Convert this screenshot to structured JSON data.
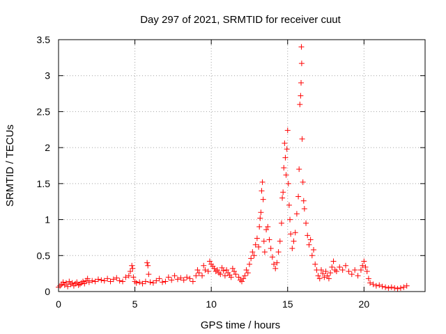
{
  "chart_data": {
    "type": "scatter",
    "title": "Day 297 of 2021, SRMTID for receiver cuut",
    "xlabel": "GPS time / hours",
    "ylabel": "SRMTID / TECUs",
    "xlim": [
      0,
      24
    ],
    "ylim": [
      0,
      3.5
    ],
    "xticks": [
      0,
      5,
      10,
      15,
      20
    ],
    "yticks": [
      0,
      0.5,
      1,
      1.5,
      2,
      2.5,
      3,
      3.5
    ],
    "xtick_labels": [
      "0",
      "5",
      "10",
      "15",
      "20"
    ],
    "ytick_labels": [
      "0",
      "0.5",
      "1",
      "1.5",
      "2",
      "2.5",
      "3",
      "3.5"
    ],
    "grid": true,
    "marker": "plus",
    "color": "#ff0000",
    "series": [
      {
        "name": "SRMTID",
        "points": [
          [
            0.0,
            0.06
          ],
          [
            0.1,
            0.08
          ],
          [
            0.2,
            0.1
          ],
          [
            0.3,
            0.13
          ],
          [
            0.4,
            0.09
          ],
          [
            0.5,
            0.12
          ],
          [
            0.6,
            0.07
          ],
          [
            0.7,
            0.14
          ],
          [
            0.8,
            0.1
          ],
          [
            0.9,
            0.12
          ],
          [
            1.0,
            0.08
          ],
          [
            1.1,
            0.11
          ],
          [
            1.2,
            0.13
          ],
          [
            1.3,
            0.09
          ],
          [
            1.4,
            0.1
          ],
          [
            1.5,
            0.12
          ],
          [
            1.6,
            0.14
          ],
          [
            1.7,
            0.11
          ],
          [
            1.8,
            0.15
          ],
          [
            1.9,
            0.18
          ],
          [
            2.0,
            0.13
          ],
          [
            2.2,
            0.15
          ],
          [
            2.4,
            0.14
          ],
          [
            2.6,
            0.17
          ],
          [
            2.8,
            0.16
          ],
          [
            3.0,
            0.15
          ],
          [
            3.2,
            0.18
          ],
          [
            3.4,
            0.14
          ],
          [
            3.6,
            0.17
          ],
          [
            3.8,
            0.19
          ],
          [
            4.0,
            0.15
          ],
          [
            4.2,
            0.14
          ],
          [
            4.4,
            0.2
          ],
          [
            4.6,
            0.22
          ],
          [
            4.7,
            0.28
          ],
          [
            4.8,
            0.36
          ],
          [
            4.85,
            0.32
          ],
          [
            4.9,
            0.2
          ],
          [
            5.0,
            0.14
          ],
          [
            5.1,
            0.12
          ],
          [
            5.3,
            0.13
          ],
          [
            5.5,
            0.11
          ],
          [
            5.7,
            0.14
          ],
          [
            5.8,
            0.4
          ],
          [
            5.85,
            0.36
          ],
          [
            5.9,
            0.24
          ],
          [
            6.0,
            0.13
          ],
          [
            6.2,
            0.12
          ],
          [
            6.4,
            0.15
          ],
          [
            6.6,
            0.18
          ],
          [
            6.8,
            0.13
          ],
          [
            7.0,
            0.14
          ],
          [
            7.2,
            0.2
          ],
          [
            7.4,
            0.16
          ],
          [
            7.6,
            0.22
          ],
          [
            7.8,
            0.17
          ],
          [
            8.0,
            0.19
          ],
          [
            8.2,
            0.16
          ],
          [
            8.4,
            0.2
          ],
          [
            8.6,
            0.18
          ],
          [
            8.8,
            0.14
          ],
          [
            9.0,
            0.22
          ],
          [
            9.1,
            0.3
          ],
          [
            9.2,
            0.26
          ],
          [
            9.4,
            0.22
          ],
          [
            9.5,
            0.36
          ],
          [
            9.6,
            0.3
          ],
          [
            9.8,
            0.28
          ],
          [
            9.9,
            0.42
          ],
          [
            10.0,
            0.38
          ],
          [
            10.1,
            0.35
          ],
          [
            10.2,
            0.32
          ],
          [
            10.3,
            0.28
          ],
          [
            10.4,
            0.3
          ],
          [
            10.5,
            0.26
          ],
          [
            10.6,
            0.24
          ],
          [
            10.7,
            0.33
          ],
          [
            10.8,
            0.29
          ],
          [
            10.9,
            0.22
          ],
          [
            11.0,
            0.3
          ],
          [
            11.1,
            0.26
          ],
          [
            11.2,
            0.23
          ],
          [
            11.3,
            0.2
          ],
          [
            11.4,
            0.32
          ],
          [
            11.5,
            0.28
          ],
          [
            11.6,
            0.24
          ],
          [
            11.8,
            0.2
          ],
          [
            11.9,
            0.16
          ],
          [
            12.0,
            0.14
          ],
          [
            12.1,
            0.18
          ],
          [
            12.2,
            0.22
          ],
          [
            12.3,
            0.3
          ],
          [
            12.4,
            0.26
          ],
          [
            12.5,
            0.38
          ],
          [
            12.6,
            0.46
          ],
          [
            12.7,
            0.55
          ],
          [
            12.8,
            0.5
          ],
          [
            12.9,
            0.65
          ],
          [
            13.0,
            0.74
          ],
          [
            13.1,
            0.62
          ],
          [
            13.15,
            0.9
          ],
          [
            13.2,
            1.02
          ],
          [
            13.25,
            1.1
          ],
          [
            13.3,
            1.4
          ],
          [
            13.35,
            1.52
          ],
          [
            13.4,
            1.28
          ],
          [
            13.45,
            0.7
          ],
          [
            13.5,
            0.55
          ],
          [
            13.6,
            0.86
          ],
          [
            13.7,
            0.9
          ],
          [
            13.8,
            0.72
          ],
          [
            13.9,
            0.6
          ],
          [
            14.0,
            0.48
          ],
          [
            14.1,
            0.38
          ],
          [
            14.2,
            0.32
          ],
          [
            14.3,
            0.4
          ],
          [
            14.4,
            0.55
          ],
          [
            14.5,
            0.7
          ],
          [
            14.6,
            0.95
          ],
          [
            14.65,
            1.3
          ],
          [
            14.7,
            1.38
          ],
          [
            14.75,
            1.72
          ],
          [
            14.8,
            2.06
          ],
          [
            14.85,
            1.86
          ],
          [
            14.9,
            1.62
          ],
          [
            14.95,
            1.98
          ],
          [
            15.0,
            2.24
          ],
          [
            15.05,
            1.5
          ],
          [
            15.1,
            1.2
          ],
          [
            15.15,
            1.0
          ],
          [
            15.2,
            0.8
          ],
          [
            15.3,
            0.6
          ],
          [
            15.4,
            0.7
          ],
          [
            15.5,
            0.82
          ],
          [
            15.6,
            1.08
          ],
          [
            15.7,
            1.32
          ],
          [
            15.75,
            1.7
          ],
          [
            15.8,
            2.6
          ],
          [
            15.85,
            2.72
          ],
          [
            15.88,
            2.9
          ],
          [
            15.9,
            3.4
          ],
          [
            15.92,
            3.17
          ],
          [
            15.95,
            2.12
          ],
          [
            16.0,
            1.52
          ],
          [
            16.05,
            1.26
          ],
          [
            16.1,
            1.15
          ],
          [
            16.2,
            0.95
          ],
          [
            16.3,
            0.78
          ],
          [
            16.4,
            0.65
          ],
          [
            16.5,
            0.72
          ],
          [
            16.6,
            0.5
          ],
          [
            16.7,
            0.58
          ],
          [
            16.8,
            0.38
          ],
          [
            16.9,
            0.3
          ],
          [
            17.0,
            0.22
          ],
          [
            17.1,
            0.18
          ],
          [
            17.2,
            0.3
          ],
          [
            17.3,
            0.25
          ],
          [
            17.4,
            0.2
          ],
          [
            17.5,
            0.28
          ],
          [
            17.6,
            0.22
          ],
          [
            17.7,
            0.18
          ],
          [
            17.8,
            0.26
          ],
          [
            17.9,
            0.34
          ],
          [
            18.0,
            0.42
          ],
          [
            18.1,
            0.3
          ],
          [
            18.2,
            0.28
          ],
          [
            18.4,
            0.34
          ],
          [
            18.6,
            0.3
          ],
          [
            18.8,
            0.36
          ],
          [
            19.0,
            0.28
          ],
          [
            19.2,
            0.24
          ],
          [
            19.4,
            0.3
          ],
          [
            19.6,
            0.22
          ],
          [
            19.8,
            0.3
          ],
          [
            19.9,
            0.36
          ],
          [
            20.0,
            0.42
          ],
          [
            20.1,
            0.34
          ],
          [
            20.2,
            0.28
          ],
          [
            20.3,
            0.18
          ],
          [
            20.4,
            0.12
          ],
          [
            20.6,
            0.1
          ],
          [
            20.8,
            0.08
          ],
          [
            21.0,
            0.09
          ],
          [
            21.2,
            0.07
          ],
          [
            21.4,
            0.06
          ],
          [
            21.6,
            0.05
          ],
          [
            21.8,
            0.06
          ],
          [
            22.0,
            0.05
          ],
          [
            22.2,
            0.04
          ],
          [
            22.4,
            0.05
          ],
          [
            22.6,
            0.06
          ],
          [
            22.8,
            0.08
          ]
        ]
      }
    ]
  }
}
